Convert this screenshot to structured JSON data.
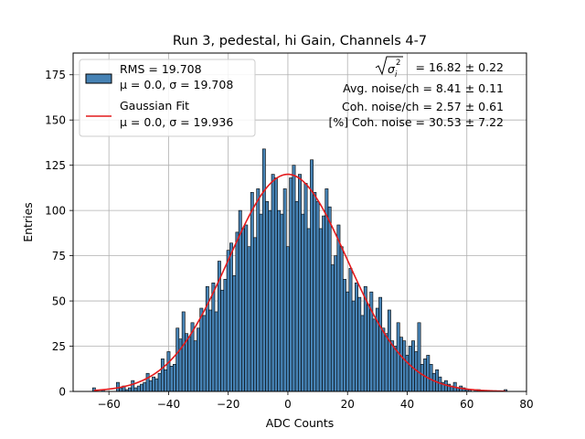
{
  "chart_data": {
    "type": "bar",
    "title": "Run 3, pedestal, hi Gain, Channels 4-7",
    "xlabel": "ADC Counts",
    "ylabel": "Entries",
    "xlim": [
      -72,
      80
    ],
    "ylim": [
      0,
      187
    ],
    "x_ticks": [
      -60,
      -40,
      -20,
      0,
      20,
      40,
      60,
      80
    ],
    "y_ticks": [
      0,
      25,
      50,
      75,
      100,
      125,
      150,
      175
    ],
    "grid": true,
    "legend_position": "top-left",
    "bin_width": 1,
    "bins": {
      "x": [
        -65,
        -64,
        -63,
        -62,
        -61,
        -60,
        -59,
        -58,
        -57,
        -56,
        -55,
        -54,
        -53,
        -52,
        -51,
        -50,
        -49,
        -48,
        -47,
        -46,
        -45,
        -44,
        -43,
        -42,
        -41,
        -40,
        -39,
        -38,
        -37,
        -36,
        -35,
        -34,
        -33,
        -32,
        -31,
        -30,
        -29,
        -28,
        -27,
        -26,
        -25,
        -24,
        -23,
        -22,
        -21,
        -20,
        -19,
        -18,
        -17,
        -16,
        -15,
        -14,
        -13,
        -12,
        -11,
        -10,
        -9,
        -8,
        -7,
        -6,
        -5,
        -4,
        -3,
        -2,
        -1,
        0,
        1,
        2,
        3,
        4,
        5,
        6,
        7,
        8,
        9,
        10,
        11,
        12,
        13,
        14,
        15,
        16,
        17,
        18,
        19,
        20,
        21,
        22,
        23,
        24,
        25,
        26,
        27,
        28,
        29,
        30,
        31,
        32,
        33,
        34,
        35,
        36,
        37,
        38,
        39,
        40,
        41,
        42,
        43,
        44,
        45,
        46,
        47,
        48,
        49,
        50,
        51,
        52,
        53,
        54,
        55,
        56,
        57,
        58,
        59,
        60,
        61,
        62,
        63,
        64,
        65,
        66,
        67,
        68,
        69,
        70,
        71,
        72,
        73
      ],
      "counts": [
        2,
        0,
        0,
        1,
        0,
        0,
        0,
        0,
        5,
        2,
        3,
        1,
        2,
        6,
        2,
        3,
        4,
        5,
        10,
        6,
        8,
        7,
        10,
        18,
        12,
        22,
        14,
        15,
        35,
        29,
        44,
        32,
        30,
        38,
        28,
        35,
        46,
        42,
        58,
        45,
        60,
        44,
        72,
        56,
        62,
        78,
        82,
        64,
        88,
        100,
        90,
        92,
        80,
        110,
        85,
        112,
        98,
        134,
        105,
        100,
        120,
        118,
        100,
        98,
        112,
        80,
        118,
        125,
        105,
        120,
        98,
        115,
        90,
        128,
        110,
        105,
        90,
        97,
        112,
        102,
        70,
        75,
        92,
        80,
        62,
        55,
        68,
        50,
        60,
        52,
        42,
        58,
        48,
        55,
        40,
        46,
        52,
        35,
        32,
        45,
        28,
        25,
        38,
        30,
        28,
        20,
        25,
        28,
        22,
        38,
        15,
        18,
        20,
        15,
        10,
        12,
        8,
        5,
        6,
        4,
        3,
        5,
        2,
        3,
        2,
        1,
        1,
        0,
        1,
        1,
        0,
        0,
        0,
        0,
        0,
        0,
        0,
        0,
        1
      ]
    },
    "series": [
      {
        "name": "RMS = 19.708",
        "detail": "μ = 0.0, σ = 19.708",
        "type": "histogram",
        "color": "#4682b4"
      },
      {
        "name": "Gaussian Fit",
        "detail": "μ = 0.0, σ = 19.936",
        "type": "line",
        "color": "#e41a1c",
        "mu": 0.0,
        "sigma": 19.936,
        "amplitude": 120
      }
    ],
    "annotations": [
      {
        "label": "= 16.82 ± 0.22"
      },
      {
        "label": "Avg. noise/ch = 8.41 ± 0.11"
      },
      {
        "label": "Coh. noise/ch = 2.57 ± 0.61"
      },
      {
        "label": "[%] Coh. noise = 30.53 ± 7.22"
      }
    ]
  }
}
